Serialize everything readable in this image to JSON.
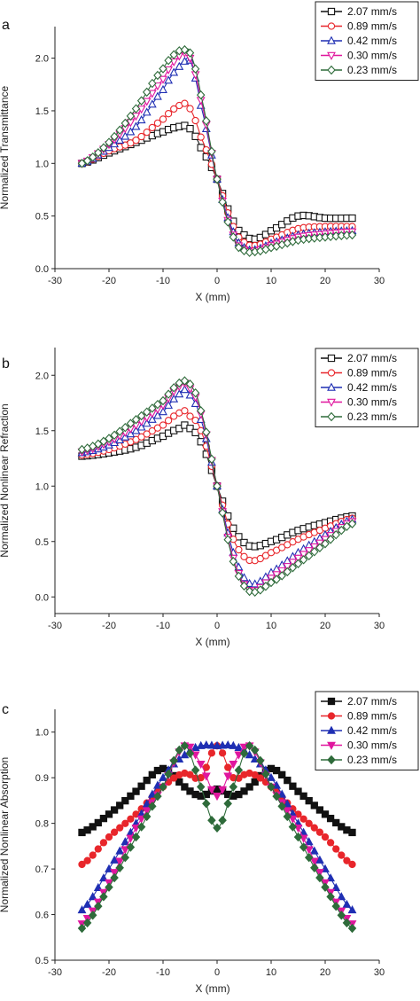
{
  "colors": {
    "s207": "#111111",
    "s089": "#e8262b",
    "s042": "#1f2fb3",
    "s030": "#e0169e",
    "s023": "#2e6b3a"
  },
  "chart_data": [
    {
      "type": "line",
      "panel_label": "a",
      "xlabel": "X (mm)",
      "ylabel": "Normalized Transmittance",
      "xlim": [
        -30,
        30
      ],
      "ylim": [
        0.0,
        2.3
      ],
      "xticks": [
        -30,
        -20,
        -10,
        0,
        10,
        20,
        30
      ],
      "yticks": [
        0.0,
        0.5,
        1.0,
        1.5,
        2.0
      ],
      "ytick_labels": [
        "0.0",
        "0.5",
        "1.0",
        "1.5",
        "2.0"
      ],
      "legend_position": "top-right",
      "marker_style": "open",
      "x": [
        -25,
        -20,
        -15,
        -10,
        -7,
        -6,
        -5,
        -3,
        0,
        3,
        5,
        7,
        10,
        15,
        20,
        25
      ],
      "series": [
        {
          "name": "2.07 mm/s",
          "marker": "square",
          "color_key": "s207",
          "values": [
            1.0,
            1.1,
            1.2,
            1.3,
            1.35,
            1.36,
            1.33,
            1.15,
            0.85,
            0.45,
            0.32,
            0.28,
            0.36,
            0.5,
            0.48,
            0.48
          ]
        },
        {
          "name": "0.89 mm/s",
          "marker": "circle",
          "color_key": "s089",
          "values": [
            1.0,
            1.12,
            1.22,
            1.42,
            1.55,
            1.57,
            1.52,
            1.25,
            0.85,
            0.4,
            0.25,
            0.22,
            0.28,
            0.38,
            0.4,
            0.4
          ]
        },
        {
          "name": "0.42 mm/s",
          "marker": "triangle-up",
          "color_key": "s042",
          "values": [
            1.0,
            1.15,
            1.35,
            1.7,
            1.92,
            1.97,
            1.98,
            1.55,
            0.85,
            0.35,
            0.2,
            0.18,
            0.24,
            0.32,
            0.35,
            0.36
          ]
        },
        {
          "name": "0.30 mm/s",
          "marker": "triangle-down",
          "color_key": "s030",
          "values": [
            1.0,
            1.18,
            1.45,
            1.8,
            2.02,
            2.05,
            2.0,
            1.6,
            0.85,
            0.32,
            0.18,
            0.17,
            0.22,
            0.3,
            0.33,
            0.35
          ]
        },
        {
          "name": "0.23 mm/s",
          "marker": "diamond",
          "color_key": "s023",
          "values": [
            1.0,
            1.2,
            1.52,
            1.9,
            2.07,
            2.08,
            2.05,
            1.65,
            0.85,
            0.3,
            0.17,
            0.16,
            0.2,
            0.27,
            0.3,
            0.32
          ]
        }
      ]
    },
    {
      "type": "line",
      "panel_label": "b",
      "xlabel": "X (mm)",
      "ylabel": "Normalized Nonlinear Refraction",
      "xlim": [
        -30,
        30
      ],
      "ylim": [
        -0.15,
        2.25
      ],
      "xticks": [
        -30,
        -20,
        -10,
        0,
        10,
        20,
        30
      ],
      "yticks": [
        0.0,
        0.5,
        1.0,
        1.5,
        2.0
      ],
      "ytick_labels": [
        "0.0",
        "0.5",
        "1.0",
        "1.5",
        "2.0"
      ],
      "legend_position": "top-right",
      "marker_style": "open",
      "x": [
        -25,
        -20,
        -15,
        -10,
        -7,
        -6,
        -5,
        -3,
        0,
        3,
        6,
        10,
        15,
        20,
        25
      ],
      "series": [
        {
          "name": "2.07 mm/s",
          "marker": "square",
          "color_key": "s207",
          "values": [
            1.27,
            1.3,
            1.35,
            1.45,
            1.52,
            1.55,
            1.52,
            1.4,
            1.0,
            0.62,
            0.46,
            0.5,
            0.6,
            0.67,
            0.73
          ]
        },
        {
          "name": "0.89 mm/s",
          "marker": "circle",
          "color_key": "s089",
          "values": [
            1.28,
            1.33,
            1.42,
            1.55,
            1.66,
            1.68,
            1.63,
            1.5,
            1.0,
            0.52,
            0.33,
            0.4,
            0.52,
            0.62,
            0.71
          ]
        },
        {
          "name": "0.42 mm/s",
          "marker": "triangle-up",
          "color_key": "s042",
          "values": [
            1.3,
            1.37,
            1.5,
            1.67,
            1.83,
            1.87,
            1.82,
            1.6,
            1.0,
            0.4,
            0.12,
            0.22,
            0.4,
            0.56,
            0.7
          ]
        },
        {
          "name": "0.30 mm/s",
          "marker": "triangle-down",
          "color_key": "s030",
          "values": [
            1.31,
            1.4,
            1.55,
            1.73,
            1.9,
            1.93,
            1.88,
            1.65,
            1.0,
            0.35,
            0.06,
            0.17,
            0.35,
            0.52,
            0.68
          ]
        },
        {
          "name": "0.23 mm/s",
          "marker": "diamond",
          "color_key": "s023",
          "values": [
            1.33,
            1.43,
            1.6,
            1.77,
            1.93,
            1.95,
            1.92,
            1.68,
            1.0,
            0.32,
            0.05,
            0.13,
            0.3,
            0.48,
            0.66
          ]
        }
      ]
    },
    {
      "type": "line",
      "panel_label": "c",
      "xlabel": "X (mm)",
      "ylabel": "Normalized Nonlinear Absorption",
      "xlim": [
        -30,
        30
      ],
      "ylim": [
        0.5,
        1.05
      ],
      "xticks": [
        -30,
        -20,
        -10,
        0,
        10,
        20,
        30
      ],
      "yticks": [
        0.5,
        0.6,
        0.7,
        0.8,
        0.9,
        1.0
      ],
      "ytick_labels": [
        "0.5",
        "0.6",
        "0.7",
        "0.8",
        "0.9",
        "1.0"
      ],
      "legend_position": "top-right",
      "marker_style": "filled",
      "x": [
        -25,
        -20,
        -15,
        -10,
        -6,
        -3,
        0,
        3,
        6,
        10,
        15,
        20,
        25
      ],
      "series": [
        {
          "name": "2.07 mm/s",
          "marker": "square",
          "color_key": "s207",
          "values": [
            0.78,
            0.82,
            0.87,
            0.92,
            0.88,
            0.86,
            0.875,
            0.86,
            0.88,
            0.92,
            0.87,
            0.82,
            0.78
          ]
        },
        {
          "name": "0.89 mm/s",
          "marker": "circle",
          "color_key": "s089",
          "values": [
            0.71,
            0.77,
            0.82,
            0.88,
            0.91,
            0.9,
            0.97,
            0.9,
            0.91,
            0.88,
            0.82,
            0.77,
            0.71
          ]
        },
        {
          "name": "0.42 mm/s",
          "marker": "triangle-up",
          "color_key": "s042",
          "values": [
            0.61,
            0.7,
            0.8,
            0.9,
            0.95,
            0.97,
            0.97,
            0.97,
            0.95,
            0.9,
            0.8,
            0.7,
            0.61
          ]
        },
        {
          "name": "0.30 mm/s",
          "marker": "triangle-down",
          "color_key": "s030",
          "values": [
            0.58,
            0.67,
            0.79,
            0.88,
            0.97,
            0.93,
            0.86,
            0.93,
            0.97,
            0.88,
            0.79,
            0.67,
            0.58
          ]
        },
        {
          "name": "0.23 mm/s",
          "marker": "diamond",
          "color_key": "s023",
          "values": [
            0.57,
            0.66,
            0.77,
            0.88,
            0.97,
            0.88,
            0.79,
            0.88,
            0.97,
            0.88,
            0.77,
            0.66,
            0.57
          ]
        }
      ]
    }
  ]
}
